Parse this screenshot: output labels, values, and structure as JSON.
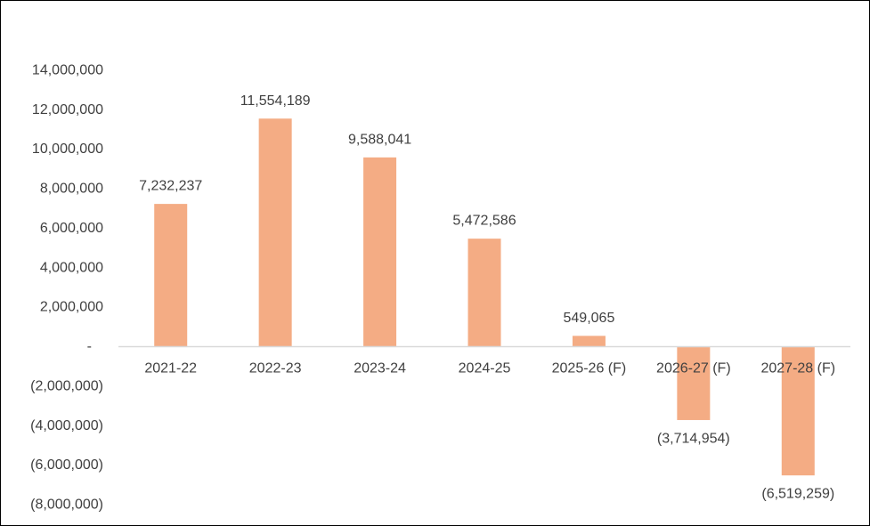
{
  "chart_data": {
    "type": "bar",
    "title": "",
    "xlabel": "",
    "ylabel": "",
    "categories": [
      "2021-22",
      "2022-23",
      "2023-24",
      "2024-25",
      "2025-26 (F)",
      "2026-27 (F)",
      "2027-28 (F)"
    ],
    "values": [
      7232237,
      11554189,
      9588041,
      5472586,
      549065,
      -3714954,
      -6519259
    ],
    "data_labels": [
      "7,232,237",
      "11,554,189",
      "9,588,041",
      "5,472,586",
      "549,065",
      "(3,714,954)",
      "(6,519,259)"
    ],
    "ylim": [
      -8000000,
      14000000
    ],
    "yticks": [
      14000000,
      12000000,
      10000000,
      8000000,
      6000000,
      4000000,
      2000000,
      0,
      -2000000,
      -4000000,
      -6000000,
      -8000000
    ],
    "ytick_labels": [
      "14,000,000",
      "12,000,000",
      "10,000,000",
      "8,000,000",
      "6,000,000",
      "4,000,000",
      "2,000,000",
      "-",
      "(2,000,000)",
      "(4,000,000)",
      "(6,000,000)",
      "(8,000,000)"
    ],
    "grid": false,
    "legend": "none",
    "colors": {
      "bar": "#F4AC84",
      "axis": "#D9D9D9",
      "text": "#404040",
      "border": "#000000"
    }
  }
}
